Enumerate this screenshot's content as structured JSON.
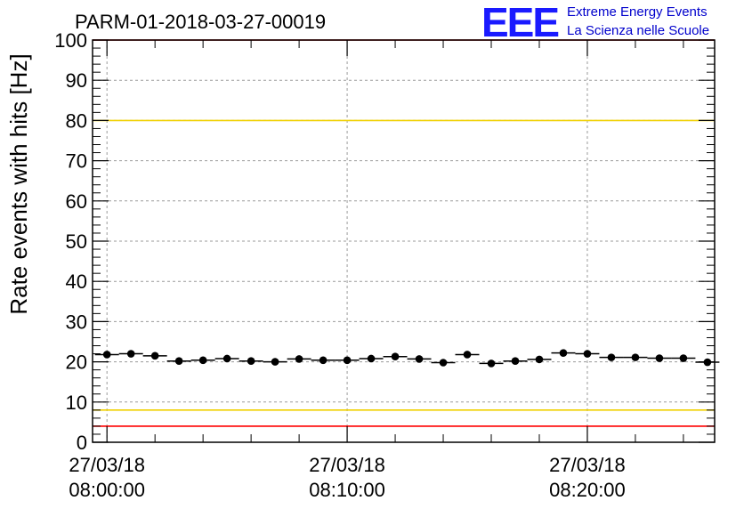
{
  "header": {
    "run_title": "PARM-01-2018-03-27-00019",
    "logo": "EEE",
    "logo_line1": "Extreme Energy Events",
    "logo_line2": "La Scienza nelle Scuole"
  },
  "chart_data": {
    "type": "scatter",
    "title": "PARM-01-2018-03-27-00019",
    "xlabel": "",
    "ylabel": "Rate events with hits [Hz]",
    "ylim": [
      0,
      100
    ],
    "xlim_minutes": [
      -0.6,
      25.3
    ],
    "grid": true,
    "legend": "none",
    "x_tick_labels": [
      {
        "minute": 0,
        "line1": "27/03/18",
        "line2": "08:00:00"
      },
      {
        "minute": 10,
        "line1": "27/03/18",
        "line2": "08:10:00"
      },
      {
        "minute": 20,
        "line1": "27/03/18",
        "line2": "08:20:00"
      }
    ],
    "y_tick_labels": [
      "0",
      "10",
      "20",
      "30",
      "40",
      "50",
      "60",
      "70",
      "80",
      "90",
      "100"
    ],
    "reference_lines": [
      {
        "y": 80,
        "color": "#f0d000"
      },
      {
        "y": 8,
        "color": "#f0d000"
      },
      {
        "y": 100,
        "color": "#ff0000"
      },
      {
        "y": 4,
        "color": "#ff0000"
      }
    ],
    "point_color": "#000000",
    "bin_width_minutes": 1,
    "series": [
      {
        "x_minutes": [
          0,
          1,
          2,
          3,
          4,
          5,
          6,
          7,
          8,
          9,
          10,
          11,
          12,
          13,
          14,
          15,
          16,
          17,
          18,
          19,
          20,
          21,
          22,
          23,
          24,
          25
        ],
        "y": [
          21.8,
          22.0,
          21.5,
          20.2,
          20.4,
          20.8,
          20.2,
          20.0,
          20.7,
          20.4,
          20.4,
          20.8,
          21.3,
          20.7,
          19.8,
          21.8,
          19.6,
          20.2,
          20.6,
          22.2,
          22.0,
          21.1,
          21.1,
          20.9,
          20.9,
          19.9
        ]
      }
    ]
  }
}
